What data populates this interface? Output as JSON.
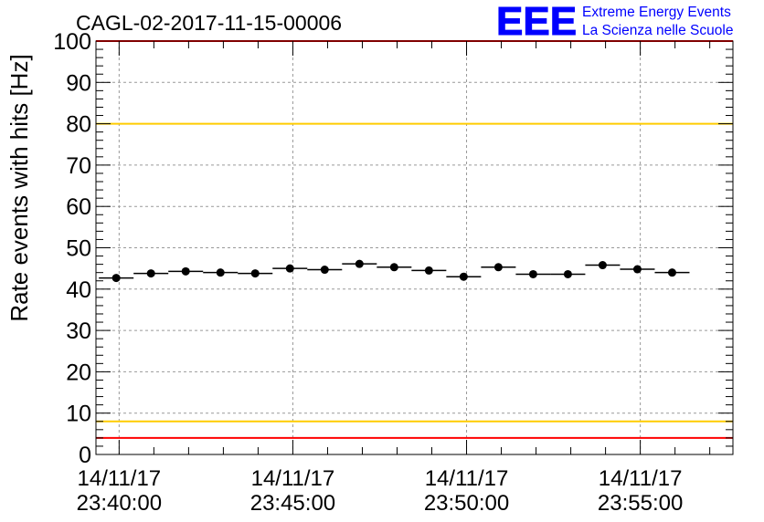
{
  "chart_data": {
    "type": "scatter",
    "title": "CAGL-02-2017-11-15-00006",
    "ylabel": "Rate events with hits [Hz]",
    "xlabel": "",
    "ylim": [
      0,
      100
    ],
    "y_ticks": [
      0,
      10,
      20,
      30,
      40,
      50,
      60,
      70,
      80,
      90,
      100
    ],
    "y_tick_labels": [
      "0",
      "10",
      "20",
      "30",
      "40",
      "50",
      "60",
      "70",
      "80",
      "90",
      "100"
    ],
    "x_range": [
      "14/11/17 23:39:20",
      "14/11/17 23:57:40"
    ],
    "x_tick_labels": [
      {
        "time": "14/11/17 23:40:00",
        "date": "14/11/17",
        "clock": "23:40:00"
      },
      {
        "time": "14/11/17 23:45:00",
        "date": "14/11/17",
        "clock": "23:45:00"
      },
      {
        "time": "14/11/17 23:50:00",
        "date": "14/11/17",
        "clock": "23:50:00"
      },
      {
        "time": "14/11/17 23:55:00",
        "date": "14/11/17",
        "clock": "23:55:00"
      }
    ],
    "grid": true,
    "bin_width_seconds": 60,
    "series": [
      {
        "marker": "circle",
        "color": "#000000",
        "points": [
          {
            "x": "14/11/17 23:39:55",
            "y": 42.7
          },
          {
            "x": "14/11/17 23:40:55",
            "y": 43.8
          },
          {
            "x": "14/11/17 23:41:55",
            "y": 44.3
          },
          {
            "x": "14/11/17 23:42:55",
            "y": 44.0
          },
          {
            "x": "14/11/17 23:43:55",
            "y": 43.8
          },
          {
            "x": "14/11/17 23:44:55",
            "y": 45.0
          },
          {
            "x": "14/11/17 23:45:55",
            "y": 44.7
          },
          {
            "x": "14/11/17 23:46:55",
            "y": 46.1
          },
          {
            "x": "14/11/17 23:47:55",
            "y": 45.3
          },
          {
            "x": "14/11/17 23:48:55",
            "y": 44.5
          },
          {
            "x": "14/11/17 23:49:55",
            "y": 43.0
          },
          {
            "x": "14/11/17 23:50:55",
            "y": 45.3
          },
          {
            "x": "14/11/17 23:51:55",
            "y": 43.6
          },
          {
            "x": "14/11/17 23:52:55",
            "y": 43.6
          },
          {
            "x": "14/11/17 23:53:55",
            "y": 45.8
          },
          {
            "x": "14/11/17 23:54:55",
            "y": 44.8
          },
          {
            "x": "14/11/17 23:55:55",
            "y": 44.0
          }
        ]
      }
    ],
    "reference_lines": [
      {
        "y": 100,
        "color": "#ff0000"
      },
      {
        "y": 80,
        "color": "#ffcc00"
      },
      {
        "y": 8,
        "color": "#ffcc00"
      },
      {
        "y": 4,
        "color": "#ff0000"
      }
    ]
  },
  "logo": {
    "text": "EEE",
    "line1": "Extreme Energy Events",
    "line2": "La Scienza nelle Scuole",
    "color": "#0000ff"
  }
}
